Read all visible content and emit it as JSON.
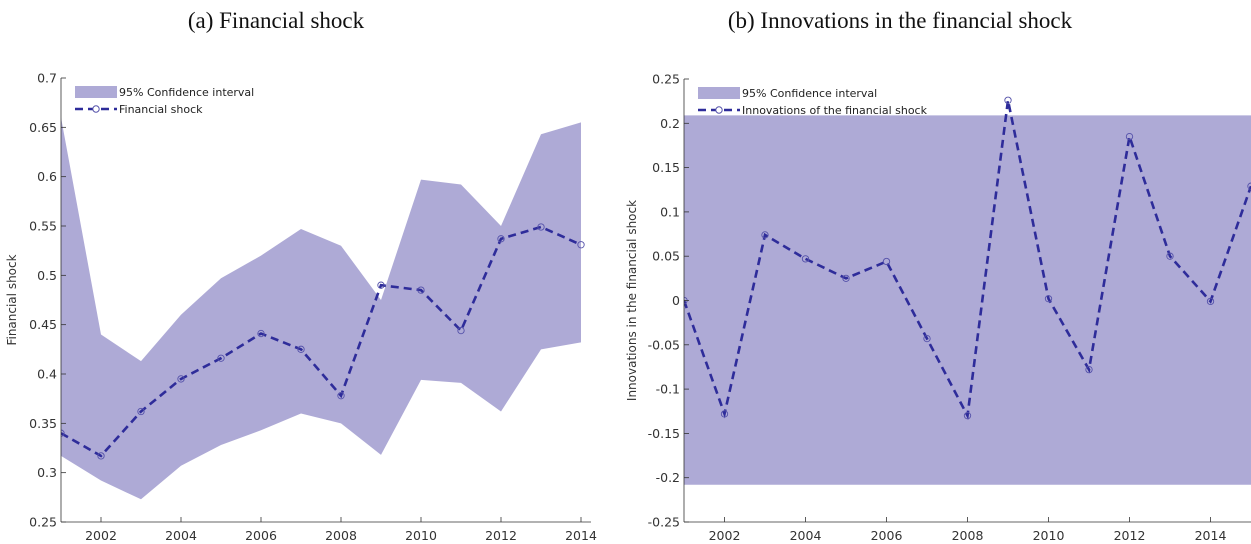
{
  "chart_data": [
    {
      "type": "line",
      "title": "(a) Financial shock",
      "y_label": "Financial shock",
      "x": [
        2001,
        2002,
        2003,
        2004,
        2005,
        2006,
        2007,
        2008,
        2009,
        2010,
        2011,
        2012,
        2013,
        2014
      ],
      "series": [
        {
          "name": "95% Confidence interval",
          "color": "#aeaad6",
          "upper": [
            0.66,
            0.44,
            0.413,
            0.46,
            0.497,
            0.52,
            0.547,
            0.53,
            0.475,
            0.597,
            0.592,
            0.55,
            0.643,
            0.655
          ],
          "lower": [
            0.317,
            0.292,
            0.273,
            0.307,
            0.328,
            0.343,
            0.36,
            0.35,
            0.318,
            0.394,
            0.391,
            0.362,
            0.425,
            0.432
          ]
        },
        {
          "name": "Financial shock",
          "color": "#2e2c9a",
          "values": [
            0.34,
            0.317,
            0.362,
            0.395,
            0.416,
            0.441,
            0.425,
            0.378,
            0.49,
            0.485,
            0.444,
            0.537,
            0.549,
            0.531
          ]
        }
      ],
      "xlim": [
        2001,
        2014.25
      ],
      "xticks": [
        2002,
        2004,
        2006,
        2008,
        2010,
        2012,
        2014
      ],
      "ylim": [
        0.25,
        0.7
      ],
      "yticks": [
        0.25,
        0.3,
        0.35,
        0.4,
        0.45,
        0.5,
        0.55,
        0.6,
        0.65,
        0.7
      ]
    },
    {
      "type": "line",
      "title": "(b) Innovations in the financial shock",
      "y_label": "Innovations in the financial shock",
      "x": [
        2001,
        2002,
        2003,
        2004,
        2005,
        2006,
        2007,
        2008,
        2009,
        2010,
        2011,
        2012,
        2013,
        2014,
        2015
      ],
      "series": [
        {
          "name": "95% Confidence interval",
          "color": "#aeaad6",
          "upper": [
            0.209,
            0.209,
            0.209,
            0.209,
            0.209,
            0.209,
            0.209,
            0.209,
            0.209,
            0.209,
            0.209,
            0.209,
            0.209,
            0.209,
            0.209
          ],
          "lower": [
            -0.208,
            -0.208,
            -0.208,
            -0.208,
            -0.208,
            -0.208,
            -0.208,
            -0.208,
            -0.208,
            -0.208,
            -0.208,
            -0.208,
            -0.208,
            -0.208,
            -0.208
          ]
        },
        {
          "name": "Innovations of the financial shock",
          "color": "#2e2c9a",
          "values": [
            0,
            -0.128,
            0.074,
            0.047,
            0.025,
            0.044,
            -0.043,
            -0.13,
            0.226,
            0.002,
            -0.078,
            0.185,
            0.05,
            -0.001,
            0.129
          ]
        }
      ],
      "xlim": [
        2001,
        2015
      ],
      "xticks": [
        2002,
        2004,
        2006,
        2008,
        2010,
        2012,
        2014
      ],
      "ylim": [
        -0.25,
        0.25
      ],
      "yticks": [
        -0.25,
        -0.2,
        -0.15,
        -0.1,
        -0.05,
        0,
        0.05,
        0.1,
        0.15,
        0.2,
        0.25
      ]
    }
  ]
}
